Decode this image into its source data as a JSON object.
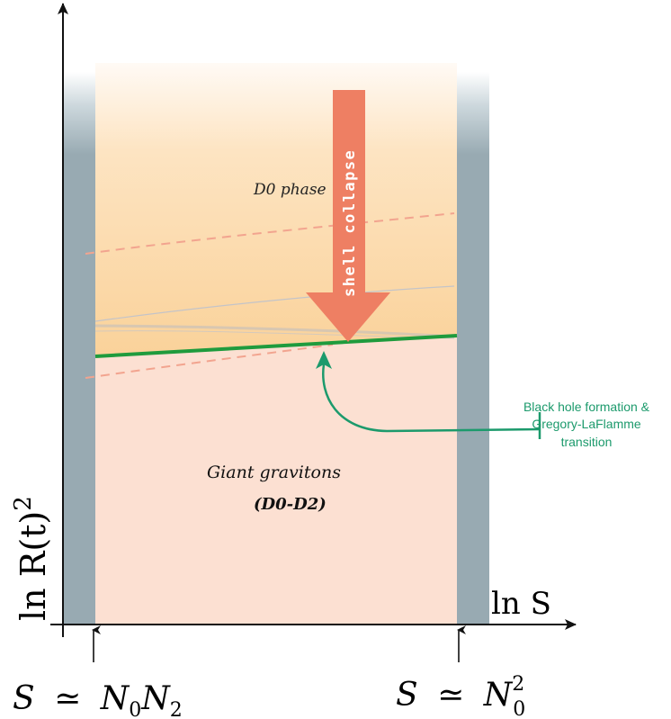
{
  "labels": {
    "y_axis": "ln R(t)",
    "y_axis_exp": "2",
    "x_axis": "ln S",
    "left_marker_lhs": "S",
    "left_marker_rel": "≃",
    "left_marker_n0": "N",
    "left_marker_n0_sub": "0",
    "left_marker_n2": "N",
    "left_marker_n2_sub": "2",
    "right_marker_lhs": "S",
    "right_marker_rel": "≃",
    "right_marker_n": "N",
    "right_marker_sub": "0",
    "right_marker_sup": "2",
    "upper_region": "D0 phase",
    "lower_region_line1": "Giant gravitons",
    "lower_region_line2": "(D0-D2)",
    "arrow_text": "shell collapse",
    "annotation_line1": "Black hole formation &",
    "annotation_line2": "Gregory-LaFlamme",
    "annotation_line3": "transition"
  },
  "colors": {
    "upper_region_top": "#fdf3ea",
    "upper_region_bottom": "#fbd9a8",
    "lower_region": "#fce0d2",
    "side_bands": "#98aab2",
    "transition_line": "#1f9b3d",
    "annotation": "#1c9a6c",
    "collapse_arrow": "#ee7f63",
    "dashed_curves": "#f2a48f",
    "faint_curves": "#c4c4c8",
    "axes": "#111111"
  }
}
